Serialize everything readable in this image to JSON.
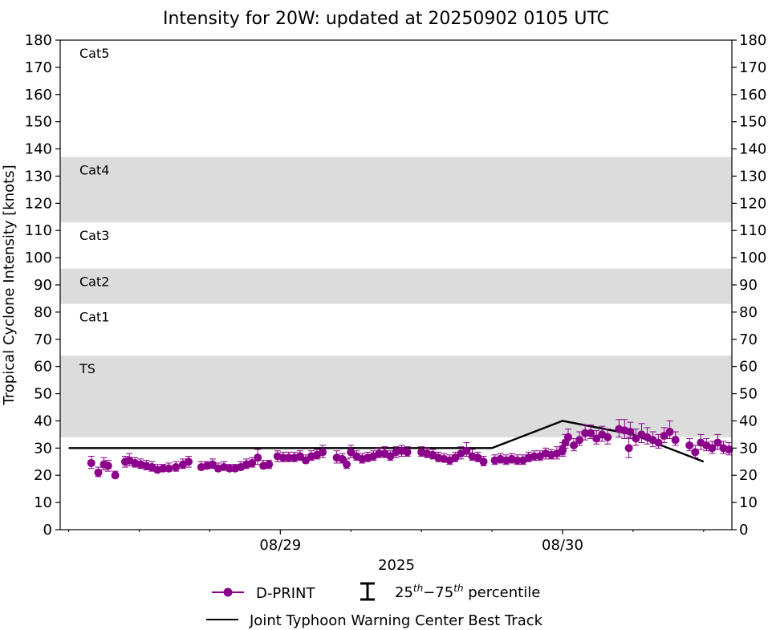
{
  "chart_data": {
    "type": "scatter",
    "title": "Intensity for 20W: updated at 20250902 0105 UTC",
    "xlabel": "2025",
    "ylabel": "Tropical Cyclone Intensity [knots]",
    "ylim": [
      0,
      180
    ],
    "y_ticks": [
      0,
      10,
      20,
      30,
      40,
      50,
      60,
      70,
      80,
      90,
      100,
      110,
      120,
      130,
      140,
      150,
      160,
      170,
      180
    ],
    "x_unit": "days after 2025-08-29 00:00 UTC",
    "xlim": [
      -0.78,
      1.6
    ],
    "x_tick_labels": [
      {
        "x": 0,
        "label": "08/29"
      },
      {
        "x": 1,
        "label": "08/30"
      }
    ],
    "x_minor_ticks": [
      -0.75,
      -0.5,
      -0.25,
      0.25,
      0.5,
      0.75,
      1.25,
      1.5
    ],
    "right_axis_mirrors_left": true,
    "bands": [
      {
        "label": "TS",
        "from": 34,
        "to": 64,
        "shaded": true
      },
      {
        "label": "Cat1",
        "from": 64,
        "to": 83,
        "shaded": false
      },
      {
        "label": "Cat2",
        "from": 83,
        "to": 96,
        "shaded": true
      },
      {
        "label": "Cat3",
        "from": 96,
        "to": 113,
        "shaded": false
      },
      {
        "label": "Cat4",
        "from": 113,
        "to": 137,
        "shaded": true
      },
      {
        "label": "Cat5",
        "from": 137,
        "to": 180,
        "shaded": false
      }
    ],
    "series": [
      {
        "name": "D-PRINT",
        "color": "#8b008b",
        "marker": "circle",
        "points": [
          {
            "x": -0.67,
            "y": 24.5,
            "lo": 22.5,
            "hi": 27
          },
          {
            "x": -0.645,
            "y": 21,
            "lo": 19.5,
            "hi": 23
          },
          {
            "x": -0.625,
            "y": 24,
            "lo": 22,
            "hi": 26.5
          },
          {
            "x": -0.61,
            "y": 23.5,
            "lo": 21.5,
            "hi": 25.5
          },
          {
            "x": -0.585,
            "y": 20,
            "lo": 19,
            "hi": 21.5
          },
          {
            "x": -0.55,
            "y": 25,
            "lo": 23,
            "hi": 27
          },
          {
            "x": -0.535,
            "y": 25.5,
            "lo": 23.5,
            "hi": 28
          },
          {
            "x": -0.515,
            "y": 24.5,
            "lo": 23,
            "hi": 26.5
          },
          {
            "x": -0.495,
            "y": 24,
            "lo": 22.5,
            "hi": 26
          },
          {
            "x": -0.475,
            "y": 23.5,
            "lo": 22,
            "hi": 25.5
          },
          {
            "x": -0.455,
            "y": 23,
            "lo": 21.5,
            "hi": 25
          },
          {
            "x": -0.435,
            "y": 22,
            "lo": 21,
            "hi": 24
          },
          {
            "x": -0.415,
            "y": 22.5,
            "lo": 21.5,
            "hi": 24
          },
          {
            "x": -0.395,
            "y": 22.5,
            "lo": 21.5,
            "hi": 24.5
          },
          {
            "x": -0.37,
            "y": 23,
            "lo": 21.5,
            "hi": 25
          },
          {
            "x": -0.345,
            "y": 24,
            "lo": 22.5,
            "hi": 26
          },
          {
            "x": -0.325,
            "y": 25,
            "lo": 23,
            "hi": 27
          },
          {
            "x": -0.28,
            "y": 23,
            "lo": 22,
            "hi": 25
          },
          {
            "x": -0.26,
            "y": 23.5,
            "lo": 22.5,
            "hi": 25
          },
          {
            "x": -0.24,
            "y": 24,
            "lo": 22.5,
            "hi": 26
          },
          {
            "x": -0.22,
            "y": 22.5,
            "lo": 21.5,
            "hi": 24.5
          },
          {
            "x": -0.2,
            "y": 23,
            "lo": 22,
            "hi": 25
          },
          {
            "x": -0.18,
            "y": 22.5,
            "lo": 21.5,
            "hi": 24
          },
          {
            "x": -0.16,
            "y": 22.5,
            "lo": 21.5,
            "hi": 24
          },
          {
            "x": -0.14,
            "y": 23,
            "lo": 22,
            "hi": 25
          },
          {
            "x": -0.12,
            "y": 24,
            "lo": 22.5,
            "hi": 26
          },
          {
            "x": -0.1,
            "y": 24.5,
            "lo": 23,
            "hi": 26.5
          },
          {
            "x": -0.08,
            "y": 26.5,
            "lo": 24,
            "hi": 29.5
          },
          {
            "x": -0.06,
            "y": 23.5,
            "lo": 22.5,
            "hi": 25.5
          },
          {
            "x": -0.04,
            "y": 24,
            "lo": 22.5,
            "hi": 25.5
          },
          {
            "x": -0.01,
            "y": 27,
            "lo": 25,
            "hi": 29
          },
          {
            "x": 0.01,
            "y": 26.5,
            "lo": 25,
            "hi": 28.5
          },
          {
            "x": 0.03,
            "y": 26.5,
            "lo": 25,
            "hi": 28.5
          },
          {
            "x": 0.05,
            "y": 26.5,
            "lo": 25,
            "hi": 28.5
          },
          {
            "x": 0.07,
            "y": 27,
            "lo": 25.5,
            "hi": 29
          },
          {
            "x": 0.09,
            "y": 25.5,
            "lo": 24.5,
            "hi": 27.5
          },
          {
            "x": 0.11,
            "y": 27,
            "lo": 25.5,
            "hi": 29
          },
          {
            "x": 0.13,
            "y": 27.5,
            "lo": 26,
            "hi": 29.5
          },
          {
            "x": 0.15,
            "y": 28.5,
            "lo": 26.5,
            "hi": 31
          },
          {
            "x": 0.2,
            "y": 26.5,
            "lo": 24.5,
            "hi": 29
          },
          {
            "x": 0.22,
            "y": 26,
            "lo": 24.5,
            "hi": 28
          },
          {
            "x": 0.235,
            "y": 24,
            "lo": 22.5,
            "hi": 26
          },
          {
            "x": 0.25,
            "y": 28.5,
            "lo": 26.5,
            "hi": 31
          },
          {
            "x": 0.27,
            "y": 27,
            "lo": 25.5,
            "hi": 29
          },
          {
            "x": 0.29,
            "y": 26,
            "lo": 24.5,
            "hi": 28
          },
          {
            "x": 0.31,
            "y": 26.5,
            "lo": 25,
            "hi": 28.5
          },
          {
            "x": 0.33,
            "y": 27,
            "lo": 25.5,
            "hi": 29
          },
          {
            "x": 0.35,
            "y": 28,
            "lo": 26.5,
            "hi": 30
          },
          {
            "x": 0.37,
            "y": 28,
            "lo": 26.5,
            "hi": 30.5
          },
          {
            "x": 0.39,
            "y": 27,
            "lo": 25.5,
            "hi": 29
          },
          {
            "x": 0.41,
            "y": 28.5,
            "lo": 26.5,
            "hi": 30.5
          },
          {
            "x": 0.43,
            "y": 29,
            "lo": 27,
            "hi": 31
          },
          {
            "x": 0.45,
            "y": 28.5,
            "lo": 27,
            "hi": 30.5
          },
          {
            "x": 0.5,
            "y": 28.5,
            "lo": 27,
            "hi": 30.5
          },
          {
            "x": 0.52,
            "y": 28,
            "lo": 26.5,
            "hi": 30
          },
          {
            "x": 0.54,
            "y": 27.5,
            "lo": 26,
            "hi": 29.5
          },
          {
            "x": 0.56,
            "y": 26.5,
            "lo": 25,
            "hi": 28.5
          },
          {
            "x": 0.58,
            "y": 26,
            "lo": 25,
            "hi": 28
          },
          {
            "x": 0.6,
            "y": 25.5,
            "lo": 24,
            "hi": 27.5
          },
          {
            "x": 0.62,
            "y": 26.5,
            "lo": 25,
            "hi": 28.5
          },
          {
            "x": 0.64,
            "y": 28,
            "lo": 26,
            "hi": 30.5
          },
          {
            "x": 0.66,
            "y": 29,
            "lo": 27,
            "hi": 32
          },
          {
            "x": 0.68,
            "y": 27,
            "lo": 25.5,
            "hi": 29.5
          },
          {
            "x": 0.7,
            "y": 26.5,
            "lo": 25,
            "hi": 28.5
          },
          {
            "x": 0.72,
            "y": 25,
            "lo": 23.5,
            "hi": 27
          },
          {
            "x": 0.76,
            "y": 25.5,
            "lo": 24,
            "hi": 27.5
          },
          {
            "x": 0.78,
            "y": 26,
            "lo": 24.5,
            "hi": 28
          },
          {
            "x": 0.8,
            "y": 25.5,
            "lo": 24,
            "hi": 27.5
          },
          {
            "x": 0.82,
            "y": 26,
            "lo": 24.5,
            "hi": 28
          },
          {
            "x": 0.84,
            "y": 25.5,
            "lo": 24,
            "hi": 27.5
          },
          {
            "x": 0.86,
            "y": 25.5,
            "lo": 24,
            "hi": 27.5
          },
          {
            "x": 0.88,
            "y": 26.5,
            "lo": 25,
            "hi": 28.5
          },
          {
            "x": 0.9,
            "y": 27,
            "lo": 25.5,
            "hi": 29
          },
          {
            "x": 0.92,
            "y": 27,
            "lo": 25.5,
            "hi": 29
          },
          {
            "x": 0.94,
            "y": 28,
            "lo": 26,
            "hi": 30
          },
          {
            "x": 0.96,
            "y": 27.5,
            "lo": 26,
            "hi": 29.5
          },
          {
            "x": 0.98,
            "y": 28,
            "lo": 26,
            "hi": 30.5
          },
          {
            "x": 1.0,
            "y": 29,
            "lo": 27,
            "hi": 31
          },
          {
            "x": 1.0,
            "y": 29.5,
            "lo": 27.5,
            "hi": 32
          },
          {
            "x": 1.01,
            "y": 32,
            "lo": 30,
            "hi": 35
          },
          {
            "x": 1.02,
            "y": 34,
            "lo": 31,
            "hi": 37
          },
          {
            "x": 1.04,
            "y": 31,
            "lo": 29,
            "hi": 33.5
          },
          {
            "x": 1.06,
            "y": 33,
            "lo": 31,
            "hi": 36
          },
          {
            "x": 1.08,
            "y": 35.5,
            "lo": 33,
            "hi": 38.5
          },
          {
            "x": 1.1,
            "y": 35.5,
            "lo": 33.5,
            "hi": 38.5
          },
          {
            "x": 1.12,
            "y": 33.5,
            "lo": 31.5,
            "hi": 36.5
          },
          {
            "x": 1.14,
            "y": 35,
            "lo": 32.5,
            "hi": 38
          },
          {
            "x": 1.16,
            "y": 34,
            "lo": 31.5,
            "hi": 37
          },
          {
            "x": 1.2,
            "y": 37,
            "lo": 34,
            "hi": 40.5
          },
          {
            "x": 1.22,
            "y": 36.5,
            "lo": 33.5,
            "hi": 40.5
          },
          {
            "x": 1.235,
            "y": 30,
            "lo": 26.5,
            "hi": 34
          },
          {
            "x": 1.24,
            "y": 36,
            "lo": 33.5,
            "hi": 39.5
          },
          {
            "x": 1.26,
            "y": 33.5,
            "lo": 31,
            "hi": 37
          },
          {
            "x": 1.28,
            "y": 35,
            "lo": 32,
            "hi": 39
          },
          {
            "x": 1.3,
            "y": 34,
            "lo": 31.5,
            "hi": 37.5
          },
          {
            "x": 1.32,
            "y": 33,
            "lo": 30.5,
            "hi": 36
          },
          {
            "x": 1.34,
            "y": 32,
            "lo": 30,
            "hi": 35
          },
          {
            "x": 1.36,
            "y": 34.5,
            "lo": 32,
            "hi": 37.5
          },
          {
            "x": 1.38,
            "y": 36,
            "lo": 33.5,
            "hi": 40
          },
          {
            "x": 1.4,
            "y": 33,
            "lo": 31,
            "hi": 36
          },
          {
            "x": 1.45,
            "y": 31,
            "lo": 29,
            "hi": 33.5
          },
          {
            "x": 1.47,
            "y": 28.5,
            "lo": 26.5,
            "hi": 31
          },
          {
            "x": 1.49,
            "y": 32,
            "lo": 29.5,
            "hi": 35
          },
          {
            "x": 1.51,
            "y": 31,
            "lo": 29,
            "hi": 33.5
          },
          {
            "x": 1.53,
            "y": 30,
            "lo": 28,
            "hi": 32.5
          },
          {
            "x": 1.55,
            "y": 32,
            "lo": 29.5,
            "hi": 35
          },
          {
            "x": 1.57,
            "y": 30,
            "lo": 28,
            "hi": 32.5
          },
          {
            "x": 1.59,
            "y": 29.5,
            "lo": 27.5,
            "hi": 32
          }
        ]
      },
      {
        "name": "Joint Typhoon Warning Center Best Track",
        "color": "#000000",
        "marker": "none",
        "points": [
          {
            "x": -0.75,
            "y": 30
          },
          {
            "x": 0.75,
            "y": 30
          },
          {
            "x": 1.0,
            "y": 40
          },
          {
            "x": 1.25,
            "y": 35
          },
          {
            "x": 1.5,
            "y": 25
          }
        ]
      }
    ],
    "legend": {
      "placement": "bottom-center",
      "entries": [
        "D-PRINT",
        "25$^{th}-75^{th}$ percentile",
        "Joint Typhoon Warning Center Best Track"
      ],
      "errorbar_label_base1": "25",
      "errorbar_label_sup1": "th",
      "errorbar_label_mid": "−75",
      "errorbar_label_sup2": "th",
      "errorbar_label_tail": " percentile"
    },
    "colors": {
      "band": "#dcdcdc",
      "dprint": "#8b008b",
      "best_track": "#000000"
    }
  }
}
